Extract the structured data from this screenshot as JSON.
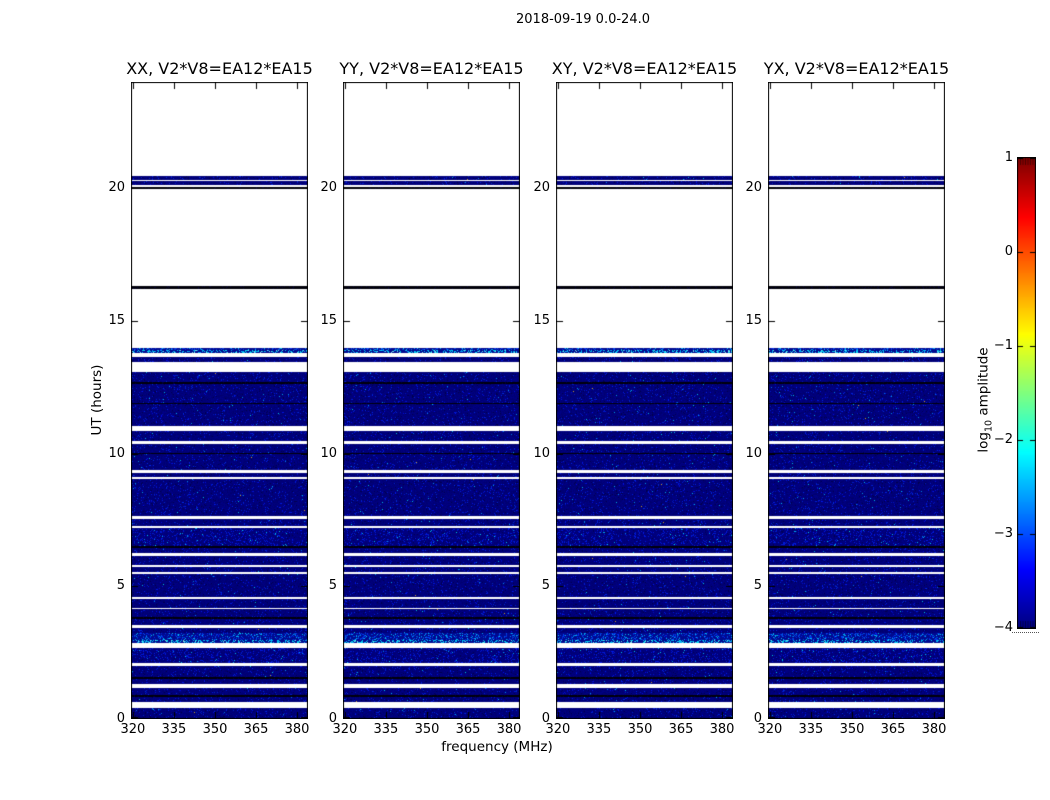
{
  "figure": {
    "suptitle": "2018-09-19 0.0-24.0"
  },
  "chart_data": {
    "type": "heatmap",
    "title": "2018-09-19 0.0-24.0",
    "subtitle": "",
    "xlabel": "frequency (MHz)",
    "ylabel": "UT (hours)",
    "panels": [
      {
        "title": "XX, V2*V8=EA12*EA15"
      },
      {
        "title": "YY, V2*V8=EA12*EA15"
      },
      {
        "title": "XY, V2*V8=EA12*EA15"
      },
      {
        "title": "YX, V2*V8=EA12*EA15"
      }
    ],
    "xlim": [
      319.3,
      384.0
    ],
    "ylim": [
      0,
      24
    ],
    "xticks": [
      320,
      335,
      350,
      365,
      380
    ],
    "xtick_labels": [
      "320",
      "335",
      "350",
      "365",
      "380"
    ],
    "yticks": [
      0,
      5,
      10,
      15,
      20
    ],
    "ytick_labels": [
      "0",
      "5",
      "10",
      "15",
      "20"
    ],
    "grid": false,
    "colorbar": {
      "label_pre": "log",
      "label_sub": "10",
      "label_post": " amplitude",
      "lim": [
        -4,
        1
      ],
      "ticks": [
        1,
        0,
        -1,
        -2,
        -3,
        -4
      ],
      "tick_labels": [
        "1",
        "0",
        "−1",
        "−2",
        "−3",
        "−4"
      ],
      "colormap": "jet"
    },
    "value_note": "amplitude shown mostly near -4 (dark blue rows); same row pattern in all four panels",
    "time_bands_ut": [
      [
        20.3,
        20.47,
        "blue"
      ],
      [
        20.12,
        20.26,
        "blue"
      ],
      [
        19.96,
        20.05,
        "black"
      ],
      [
        16.2,
        16.31,
        "black"
      ],
      [
        13.79,
        13.98,
        "bright"
      ],
      [
        13.45,
        13.64,
        "blue"
      ],
      [
        12.7,
        13.07,
        "blue"
      ],
      [
        12.62,
        12.7,
        "black"
      ],
      [
        11.91,
        12.62,
        "blue"
      ],
      [
        11.85,
        11.91,
        "black"
      ],
      [
        11.04,
        11.85,
        "blue"
      ],
      [
        10.47,
        10.85,
        "blue"
      ],
      [
        10.02,
        10.36,
        "blue"
      ],
      [
        9.97,
        10.02,
        "black"
      ],
      [
        9.38,
        9.97,
        "blue"
      ],
      [
        9.12,
        9.27,
        "blue"
      ],
      [
        7.65,
        9.06,
        "blue"
      ],
      [
        7.27,
        7.53,
        "blue"
      ],
      [
        6.52,
        7.2,
        "mottled"
      ],
      [
        6.44,
        6.52,
        "black"
      ],
      [
        6.25,
        6.44,
        "blue"
      ],
      [
        5.8,
        6.14,
        "blue"
      ],
      [
        5.54,
        5.73,
        "blue"
      ],
      [
        4.6,
        5.46,
        "blue"
      ],
      [
        4.18,
        4.52,
        "blue"
      ],
      [
        3.84,
        4.14,
        "blue"
      ],
      [
        3.77,
        3.84,
        "black"
      ],
      [
        3.54,
        3.77,
        "blue"
      ],
      [
        3.24,
        3.43,
        "blue"
      ],
      [
        2.86,
        3.24,
        "bright"
      ],
      [
        2.11,
        2.67,
        "mottled"
      ],
      [
        1.58,
        2.0,
        "blue"
      ],
      [
        1.51,
        1.58,
        "black"
      ],
      [
        1.32,
        1.51,
        "blue"
      ],
      [
        0.9,
        1.17,
        "blue"
      ],
      [
        0.83,
        0.9,
        "black"
      ],
      [
        0.64,
        0.83,
        "blue"
      ],
      [
        0.05,
        0.41,
        "blue"
      ]
    ]
  },
  "colors": {
    "background": "#ffffff",
    "axes": "#000000",
    "text": "#000000",
    "data_base_blue": "#000076",
    "black_row": "#00000a",
    "bright_speckle": "#00c8e6"
  }
}
